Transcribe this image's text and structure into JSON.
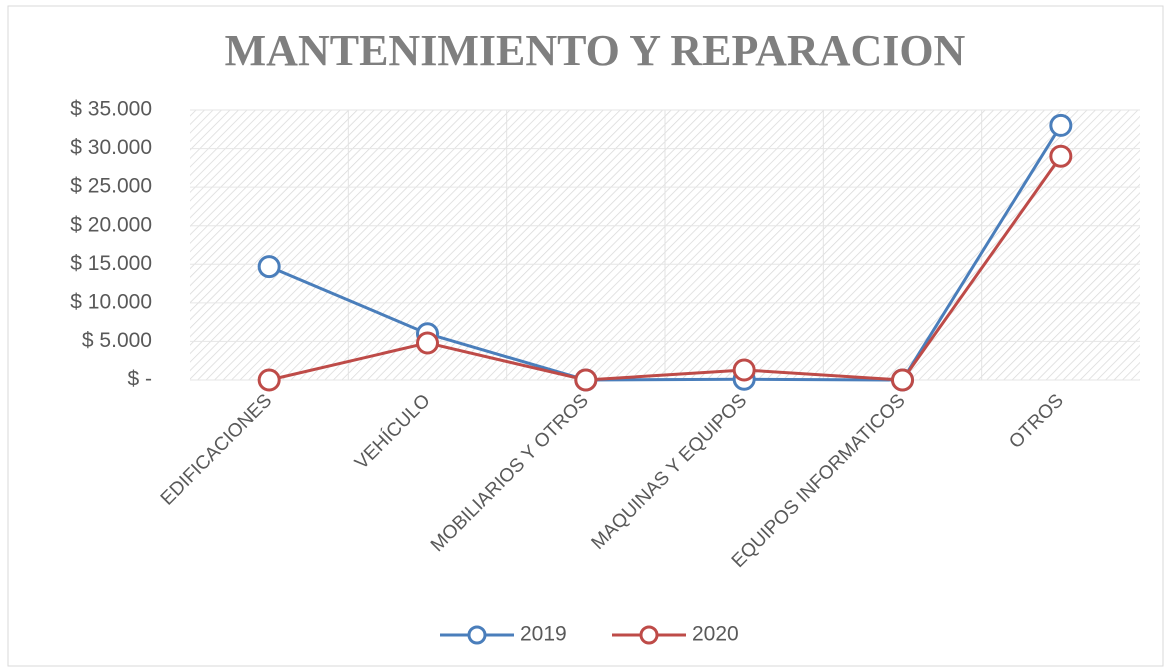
{
  "chart_data": {
    "type": "line",
    "title": "MANTENIMIENTO Y REPARACION",
    "categories": [
      "EDIFICACIONES",
      "VEHÍCULO",
      "MOBILIARIOS Y OTROS",
      "MAQUINAS Y EQUIPOS",
      "EQUIPOS INFORMATICOS",
      "OTROS"
    ],
    "series": [
      {
        "name": "2019",
        "color": "#4a7ebb",
        "values": [
          14700,
          6000,
          0,
          100,
          0,
          33000
        ]
      },
      {
        "name": "2020",
        "color": "#be4b48",
        "values": [
          0,
          4800,
          0,
          1300,
          0,
          29000
        ]
      }
    ],
    "ylim": [
      0,
      35000
    ],
    "yticks": [
      {
        "value": 0,
        "label": "$ -"
      },
      {
        "value": 5000,
        "label": "$ 5.000"
      },
      {
        "value": 10000,
        "label": "$ 10.000"
      },
      {
        "value": 15000,
        "label": "$ 15.000"
      },
      {
        "value": 20000,
        "label": "$ 20.000"
      },
      {
        "value": 25000,
        "label": "$ 25.000"
      },
      {
        "value": 30000,
        "label": "$ 30.000"
      },
      {
        "value": 35000,
        "label": "$ 35.000"
      }
    ],
    "grid": true,
    "legend": "bottom"
  }
}
